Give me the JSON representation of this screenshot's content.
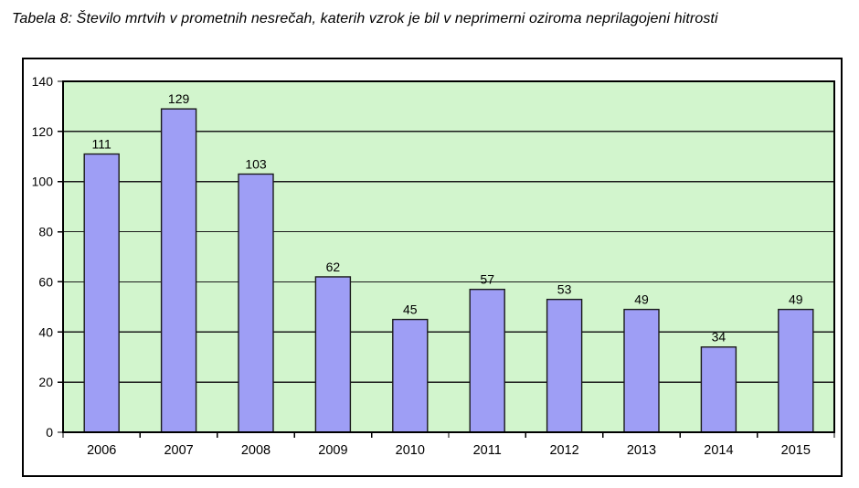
{
  "caption": {
    "text": "Tabela 8: Število mrtvih v prometnih nesrečah, katerih vzrok je bil v neprimerni oziroma neprilagojeni hitrosti"
  },
  "chart_data": {
    "type": "bar",
    "title": "",
    "xlabel": "",
    "ylabel": "",
    "categories": [
      "2006",
      "2007",
      "2008",
      "2009",
      "2010",
      "2011",
      "2012",
      "2013",
      "2014",
      "2015"
    ],
    "values": [
      111,
      129,
      103,
      62,
      45,
      57,
      53,
      49,
      34,
      49
    ],
    "ylim": [
      0,
      140
    ],
    "ytick_step": 20,
    "ytick_labels": [
      "0",
      "20",
      "40",
      "60",
      "80",
      "100",
      "120",
      "140"
    ],
    "grid": true,
    "legend": false,
    "value_labels_shown": true,
    "colors": {
      "bar_fill": "#9e9ef5",
      "bar_border": "#1a1a1a",
      "plot_bg": "#d2f5cd",
      "gridline": "#1a1a1a",
      "axis": "#000000",
      "frame_border": "#000000",
      "page_bg": "#ffffff",
      "text": "#000000"
    }
  }
}
